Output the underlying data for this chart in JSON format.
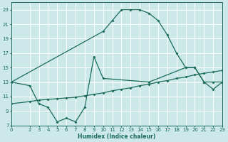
{
  "bg_color": "#cce8e8",
  "grid_color": "#ffffff",
  "line_color": "#1a6b5a",
  "xlabel": "Humidex (Indice chaleur)",
  "xlim": [
    0,
    23
  ],
  "ylim": [
    7,
    24
  ],
  "xticks": [
    0,
    2,
    3,
    4,
    5,
    6,
    7,
    8,
    9,
    10,
    11,
    12,
    13,
    14,
    15,
    16,
    17,
    18,
    19,
    20,
    21,
    22,
    23
  ],
  "yticks": [
    7,
    9,
    11,
    13,
    15,
    17,
    19,
    21,
    23
  ],
  "line1_x": [
    0,
    10,
    11,
    12,
    13,
    14,
    15,
    16,
    17,
    18,
    19,
    20,
    21,
    22,
    23
  ],
  "line1_y": [
    13,
    20,
    21.5,
    23,
    23,
    23,
    22.5,
    21.5,
    19.5,
    17,
    15,
    15,
    13,
    13,
    13
  ],
  "line2_x": [
    0,
    2,
    3,
    4,
    5,
    6,
    7,
    8,
    9,
    10,
    15,
    19,
    20,
    21,
    22,
    23
  ],
  "line2_y": [
    13,
    12.5,
    10,
    9.5,
    7.5,
    8,
    7.5,
    9.5,
    16.5,
    13.5,
    13,
    15,
    15,
    13,
    12,
    13
  ],
  "line3_x": [
    0,
    2,
    3,
    4,
    5,
    6,
    7,
    8,
    9,
    10,
    11,
    12,
    13,
    14,
    15,
    16,
    17,
    18,
    19,
    20,
    21,
    22,
    23
  ],
  "line3_y": [
    10,
    10.3,
    10.5,
    10.6,
    10.7,
    10.8,
    10.9,
    11.1,
    11.3,
    11.5,
    11.8,
    12.0,
    12.2,
    12.5,
    12.7,
    13.0,
    13.2,
    13.5,
    13.7,
    14.0,
    14.2,
    14.4,
    14.6
  ]
}
